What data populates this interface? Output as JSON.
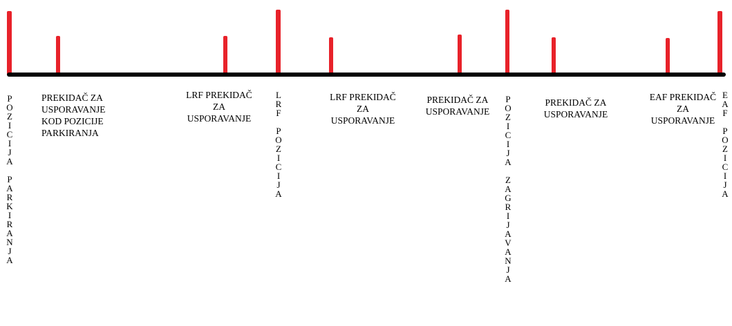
{
  "diagram": {
    "colors": {
      "mark": "#e8222a",
      "track": "#000000"
    },
    "switches": [
      {
        "id": "m-pozicija-parkiranja",
        "kind": "position",
        "height_level": "tall"
      },
      {
        "id": "m-usporavanje-parkiranje",
        "kind": "slowdown",
        "height_level": "short"
      },
      {
        "id": "m-lrf-usporavanje-1",
        "kind": "slowdown",
        "height_level": "short"
      },
      {
        "id": "m-lrf-pozicija",
        "kind": "position",
        "height_level": "tall"
      },
      {
        "id": "m-lrf-usporavanje-2",
        "kind": "slowdown",
        "height_level": "short"
      },
      {
        "id": "m-usporavanje-3",
        "kind": "slowdown",
        "height_level": "short"
      },
      {
        "id": "m-pozicija-zagrijavanja",
        "kind": "position",
        "height_level": "tall"
      },
      {
        "id": "m-usporavanje-4",
        "kind": "slowdown",
        "height_level": "short"
      },
      {
        "id": "m-eaf-usporavanje",
        "kind": "slowdown",
        "height_level": "short"
      },
      {
        "id": "m-eaf-pozicija",
        "kind": "position",
        "height_level": "tall"
      }
    ],
    "labels": {
      "pozicija_parkiranja": "P\nO\nZ\nI\nC\nI\nJ\nA\n\nP\nA\nR\nK\nI\nR\nA\nNJ\nA",
      "usporavanje_parkiranje": "PREKIDAČ ZA\nUSPORAVANJE\nKOD POZICIJE\nPARKIRANJA",
      "lrf_usporavanje_1": "LRF PREKIDAČ\nZA\nUSPORAVANJE",
      "lrf_pozicija": "L\nR\nF\n\nP\nO\nZ\nI\nC\nI\nJ\nA",
      "lrf_usporavanje_2": "LRF PREKIDAČ\nZA\nUSPORAVANJE",
      "usporavanje_3": "PREKIDAČ ZA\nUSPORAVANJE",
      "pozicija_zagrijavanja": "P\nO\nZ\nI\nC\nI\nJ\nA\n\nZ\nA\nG\nR\nI\nJ\nA\nV\nA\nNJ\nA",
      "usporavanje_4": "PREKIDAČ ZA\nUSPORAVANJE",
      "eaf_usporavanje": "EAF PREKIDAČ\nZA\nUSPORAVANJE",
      "eaf_pozicija": "E\nA\nF\n\nP\nO\nZ\nI\nC\nI\nJ\nA"
    }
  }
}
